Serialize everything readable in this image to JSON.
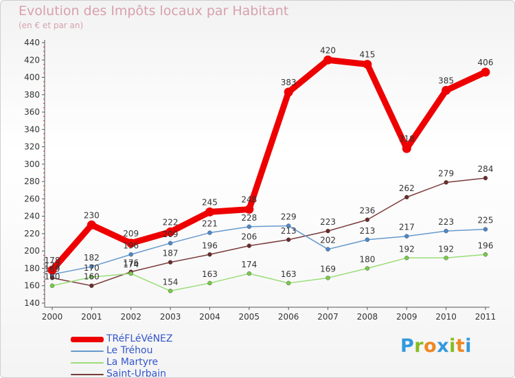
{
  "title": "Evolution des Impôts locaux par Habitant",
  "subtitle": "(en € et par an)",
  "logo": {
    "text": "Proxiti",
    "colors": [
      "#3399dd",
      "#88bb22",
      "#ee8822",
      "#3399dd",
      "#88bb22",
      "#ee8822",
      "#3399dd"
    ]
  },
  "chart_data": {
    "type": "line",
    "categories": [
      "2000",
      "2001",
      "2002",
      "2003",
      "2004",
      "2005",
      "2006",
      "2007",
      "2008",
      "2009",
      "2010",
      "2011"
    ],
    "ylim": [
      140,
      440
    ],
    "yticks": [
      140,
      160,
      180,
      200,
      220,
      240,
      260,
      280,
      300,
      320,
      340,
      360,
      380,
      400,
      420,
      440
    ],
    "grid": false,
    "legend_position": "bottom-left",
    "series": [
      {
        "name": "TRéFLéVéNEZ",
        "color": "#ee0000",
        "values": [
          178,
          230,
          209,
          222,
          245,
          248,
          383,
          420,
          415,
          318,
          385,
          406
        ]
      },
      {
        "name": "Le Tréhou",
        "color": "#6699cc",
        "marker_color": "#4a88cc",
        "values": [
          173,
          182,
          196,
          209,
          221,
          228,
          229,
          202,
          213,
          217,
          223,
          225
        ]
      },
      {
        "name": "La Martyre",
        "color": "#99dd77",
        "marker_color": "#77cc44",
        "values": [
          160,
          170,
          174,
          154,
          163,
          174,
          163,
          169,
          180,
          192,
          192,
          196
        ]
      },
      {
        "name": "Saint-Urbain",
        "color": "#7a3a3a",
        "marker_color": "#6a2a2a",
        "values": [
          169,
          160,
          176,
          187,
          196,
          206,
          213,
          223,
          236,
          262,
          279,
          284
        ]
      }
    ],
    "data_labels": [
      [
        "178",
        "230",
        "209",
        "222",
        "245",
        "248",
        "383",
        "420",
        "415",
        "318",
        "385",
        "406"
      ],
      [
        "173",
        "182",
        "196",
        "209",
        "221",
        "228",
        "229",
        "202",
        "213",
        "217",
        "223",
        "225"
      ],
      [
        "160",
        "170",
        "174",
        "154",
        "163",
        "174",
        "163",
        "169",
        "180",
        "192",
        "192",
        "196"
      ],
      [
        "169",
        "160",
        "176",
        "187",
        "196",
        "206",
        "213",
        "223",
        "236",
        "262",
        "279",
        "284"
      ]
    ]
  }
}
